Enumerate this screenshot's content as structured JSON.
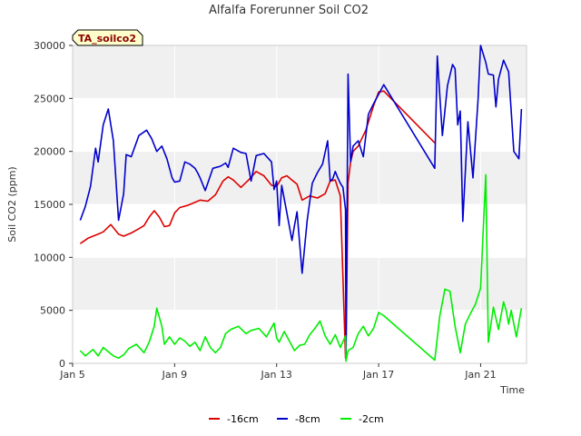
{
  "chart_data": {
    "type": "line",
    "title": "Alfalfa Forerunner Soil CO2",
    "xlabel": "Time",
    "ylabel": "Soil CO2 (ppm)",
    "badge": "TA_soilco2",
    "xlim": [
      5,
      22.8
    ],
    "ylim": [
      0,
      30000
    ],
    "x_ticks": [
      5,
      9,
      13,
      17,
      21
    ],
    "x_tick_labels": [
      "Jan 5",
      "Jan 9",
      "Jan 13",
      "Jan 17",
      "Jan 21"
    ],
    "y_ticks": [
      0,
      5000,
      10000,
      15000,
      20000,
      25000,
      30000
    ],
    "y_tick_labels": [
      "0",
      "5000",
      "10000",
      "15000",
      "20000",
      "25000",
      "30000"
    ],
    "colors": {
      "band": "#f0f0f0",
      "grid": "#ffffff",
      "badge_bg": "#ffffcc",
      "badge_text": "#8b0000"
    },
    "series": [
      {
        "name": "-16cm",
        "color": "#dd0000",
        "x": [
          5.3,
          5.6,
          5.8,
          6.0,
          6.2,
          6.5,
          6.8,
          7.0,
          7.3,
          7.6,
          7.8,
          8.0,
          8.2,
          8.4,
          8.6,
          8.8,
          9.0,
          9.2,
          9.5,
          9.8,
          10.0,
          10.3,
          10.6,
          10.9,
          11.1,
          11.3,
          11.6,
          11.9,
          12.2,
          12.5,
          12.8,
          13.0,
          13.2,
          13.4,
          13.6,
          13.8,
          14.0,
          14.3,
          14.6,
          14.9,
          15.1,
          15.3,
          15.5,
          15.7,
          15.72,
          15.8,
          15.9,
          16.0,
          16.2,
          16.5,
          16.8,
          17.0,
          17.2,
          19.2
        ],
        "y": [
          11300,
          11800,
          12000,
          12200,
          12400,
          13100,
          12200,
          12000,
          12300,
          12700,
          13000,
          13800,
          14400,
          13800,
          12900,
          13000,
          14200,
          14700,
          14900,
          15200,
          15400,
          15300,
          15900,
          17200,
          17600,
          17300,
          16600,
          17300,
          18100,
          17700,
          16800,
          16700,
          17500,
          17700,
          17300,
          16900,
          15400,
          15800,
          15600,
          16000,
          17200,
          17300,
          15800,
          500,
          700,
          17000,
          19000,
          20000,
          20500,
          22000,
          24300,
          25600,
          25700,
          20800
        ]
      },
      {
        "name": "-8cm",
        "color": "#0000cc",
        "x": [
          5.3,
          5.5,
          5.7,
          5.9,
          6.0,
          6.2,
          6.4,
          6.6,
          6.8,
          7.0,
          7.1,
          7.3,
          7.6,
          7.9,
          8.1,
          8.3,
          8.5,
          8.7,
          8.9,
          9.0,
          9.2,
          9.4,
          9.6,
          9.8,
          9.9,
          10.0,
          10.2,
          10.5,
          10.8,
          11.0,
          11.1,
          11.3,
          11.6,
          11.8,
          12.0,
          12.2,
          12.5,
          12.8,
          12.9,
          13.0,
          13.1,
          13.2,
          13.4,
          13.6,
          13.7,
          13.8,
          14.0,
          14.2,
          14.4,
          14.6,
          14.8,
          15.0,
          15.1,
          15.2,
          15.3,
          15.4,
          15.5,
          15.6,
          15.7,
          15.72,
          15.8,
          15.9,
          16.0,
          16.2,
          16.4,
          16.6,
          16.8,
          17.2,
          19.2,
          19.3,
          19.5,
          19.7,
          19.9,
          20.0,
          20.1,
          20.2,
          20.3,
          20.5,
          20.7,
          20.9,
          21.0,
          21.2,
          21.3,
          21.5,
          21.6,
          21.7,
          21.9,
          22.1,
          22.3,
          22.5,
          22.6
        ],
        "y": [
          13500,
          14800,
          16700,
          20300,
          19000,
          22500,
          24000,
          21000,
          13500,
          16000,
          19700,
          19500,
          21500,
          22000,
          21200,
          20000,
          20500,
          19300,
          17500,
          17100,
          17200,
          19000,
          18800,
          18400,
          18000,
          17500,
          16300,
          18400,
          18600,
          18900,
          18500,
          20300,
          19900,
          19800,
          17200,
          19600,
          19800,
          19000,
          16400,
          17200,
          13000,
          16800,
          14200,
          11600,
          13000,
          14300,
          8500,
          13500,
          17000,
          18000,
          18800,
          21000,
          17200,
          17400,
          18100,
          17500,
          17000,
          16600,
          14500,
          500,
          27300,
          19000,
          20500,
          21000,
          19500,
          23500,
          24500,
          26300,
          18400,
          29000,
          21500,
          26200,
          28200,
          27800,
          22500,
          23800,
          13400,
          22800,
          17500,
          24900,
          30000,
          28400,
          27300,
          27200,
          24200,
          26800,
          28600,
          27500,
          20000,
          19300,
          24000
        ]
      },
      {
        "name": "-2cm",
        "color": "#00ee00",
        "x": [
          5.3,
          5.5,
          5.8,
          6.0,
          6.2,
          6.4,
          6.6,
          6.8,
          7.0,
          7.2,
          7.5,
          7.8,
          8.0,
          8.2,
          8.3,
          8.5,
          8.6,
          8.8,
          9.0,
          9.2,
          9.4,
          9.6,
          9.8,
          10.0,
          10.2,
          10.4,
          10.6,
          10.8,
          11.0,
          11.2,
          11.5,
          11.8,
          12.0,
          12.3,
          12.6,
          12.9,
          13.0,
          13.1,
          13.3,
          13.5,
          13.7,
          13.9,
          14.1,
          14.3,
          14.5,
          14.7,
          14.9,
          15.1,
          15.3,
          15.5,
          15.7,
          15.72,
          15.8,
          16.0,
          16.2,
          16.4,
          16.6,
          16.8,
          17.0,
          17.2,
          19.2,
          19.4,
          19.6,
          19.8,
          20.0,
          20.2,
          20.4,
          20.6,
          20.8,
          21.0,
          21.2,
          21.3,
          21.5,
          21.7,
          21.9,
          22.0,
          22.1,
          22.2,
          22.4,
          22.6
        ],
        "y": [
          1200,
          700,
          1300,
          700,
          1500,
          1100,
          700,
          500,
          800,
          1400,
          1800,
          1000,
          2000,
          3500,
          5200,
          3500,
          1800,
          2500,
          1800,
          2400,
          2100,
          1600,
          2000,
          1200,
          2500,
          1500,
          1000,
          1500,
          2800,
          3200,
          3500,
          2800,
          3100,
          3300,
          2500,
          3800,
          2400,
          2000,
          3000,
          2100,
          1200,
          1700,
          1800,
          2700,
          3300,
          4000,
          2600,
          1800,
          2700,
          1500,
          2600,
          200,
          1200,
          1500,
          2800,
          3500,
          2600,
          3300,
          4800,
          4500,
          300,
          4500,
          7000,
          6800,
          3500,
          1000,
          3700,
          4700,
          5600,
          7100,
          17800,
          2000,
          5300,
          3200,
          5800,
          5000,
          3700,
          5000,
          2500,
          5200
        ]
      }
    ],
    "legend": {
      "position": "bottom"
    },
    "grid": true
  }
}
